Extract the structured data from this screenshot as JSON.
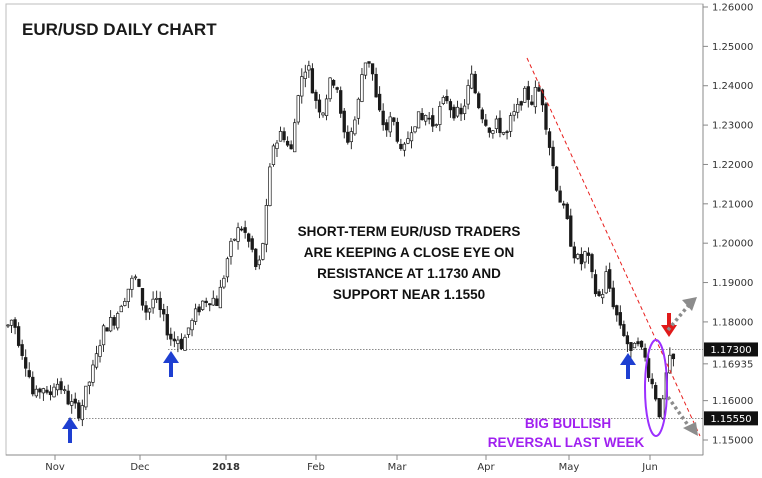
{
  "chart_data": {
    "type": "candlestick",
    "title": "EUR/USD DAILY CHART",
    "instrument": "EUR/USD",
    "timeframe": "Daily",
    "ylim": [
      1.1455,
      1.2615
    ],
    "y_ticks": [
      "1.26000",
      "1.25000",
      "1.24000",
      "1.23000",
      "1.22000",
      "1.21000",
      "1.20000",
      "1.19000",
      "1.18000",
      "1.16935",
      "1.16000",
      "1.15000"
    ],
    "x_ticks": [
      "Nov",
      "Dec",
      "2018",
      "Feb",
      "Mar",
      "Apr",
      "May",
      "Jun"
    ],
    "price_labels": [
      {
        "text": "1.17300",
        "value": 1.173
      },
      {
        "text": "1.15550",
        "value": 1.1555
      }
    ],
    "levels": [
      {
        "name": "resistance",
        "value": 1.173,
        "style": "dotted"
      },
      {
        "name": "support",
        "value": 1.1555,
        "style": "dotted"
      }
    ],
    "annotations": [
      "SHORT-TERM EUR/USD TRADERS",
      "ARE KEEPING A CLOSE EYE ON",
      "RESISTANCE AT 1.1730 AND",
      "SUPPORT NEAR 1.1550"
    ],
    "pattern_label": [
      "BIG BULLISH",
      "REVERSAL LAST WEEK"
    ],
    "price_path": [
      [
        0,
        1.179
      ],
      [
        5,
        1.181
      ],
      [
        10,
        1.176
      ],
      [
        15,
        1.172
      ],
      [
        20,
        1.168
      ],
      [
        26,
        1.16
      ],
      [
        30,
        1.162
      ],
      [
        35,
        1.164
      ],
      [
        40,
        1.16
      ],
      [
        47,
        1.165
      ],
      [
        52,
        1.164
      ],
      [
        58,
        1.161
      ],
      [
        63,
        1.159
      ],
      [
        68,
        1.158
      ],
      [
        72,
        1.157
      ],
      [
        78,
        1.162
      ],
      [
        83,
        1.166
      ],
      [
        88,
        1.17
      ],
      [
        93,
        1.176
      ],
      [
        98,
        1.179
      ],
      [
        103,
        1.18
      ],
      [
        108,
        1.181
      ],
      [
        113,
        1.185
      ],
      [
        118,
        1.187
      ],
      [
        123,
        1.19
      ],
      [
        128,
        1.191
      ],
      [
        133,
        1.186
      ],
      [
        140,
        1.182
      ],
      [
        145,
        1.186
      ],
      [
        150,
        1.184
      ],
      [
        155,
        1.181
      ],
      [
        160,
        1.178
      ],
      [
        165,
        1.175
      ],
      [
        170,
        1.176
      ],
      [
        175,
        1.174
      ],
      [
        180,
        1.178
      ],
      [
        185,
        1.18
      ],
      [
        190,
        1.183
      ],
      [
        195,
        1.185
      ],
      [
        200,
        1.186
      ],
      [
        205,
        1.186
      ],
      [
        210,
        1.185
      ],
      [
        215,
        1.19
      ],
      [
        220,
        1.196
      ],
      [
        225,
        1.2
      ],
      [
        230,
        1.203
      ],
      [
        235,
        1.204
      ],
      [
        240,
        1.201
      ],
      [
        245,
        1.198
      ],
      [
        250,
        1.192
      ],
      [
        255,
        1.199
      ],
      [
        260,
        1.21
      ],
      [
        265,
        1.225
      ],
      [
        270,
        1.226
      ],
      [
        275,
        1.229
      ],
      [
        280,
        1.225
      ],
      [
        285,
        1.223
      ],
      [
        290,
        1.238
      ],
      [
        295,
        1.242
      ],
      [
        300,
        1.247
      ],
      [
        305,
        1.239
      ],
      [
        310,
        1.236
      ],
      [
        315,
        1.233
      ],
      [
        320,
        1.238
      ],
      [
        325,
        1.242
      ],
      [
        330,
        1.24
      ],
      [
        335,
        1.229
      ],
      [
        340,
        1.226
      ],
      [
        345,
        1.229
      ],
      [
        350,
        1.233
      ],
      [
        355,
        1.243
      ],
      [
        360,
        1.248
      ],
      [
        365,
        1.244
      ],
      [
        370,
        1.235
      ],
      [
        375,
        1.231
      ],
      [
        380,
        1.229
      ],
      [
        385,
        1.232
      ],
      [
        390,
        1.228
      ],
      [
        395,
        1.221
      ],
      [
        400,
        1.226
      ],
      [
        405,
        1.23
      ],
      [
        410,
        1.232
      ],
      [
        415,
        1.231
      ],
      [
        420,
        1.233
      ],
      [
        425,
        1.23
      ],
      [
        430,
        1.232
      ],
      [
        435,
        1.235
      ],
      [
        440,
        1.237
      ],
      [
        445,
        1.234
      ],
      [
        450,
        1.233
      ],
      [
        455,
        1.232
      ],
      [
        460,
        1.238
      ],
      [
        465,
        1.242
      ],
      [
        470,
        1.237
      ],
      [
        475,
        1.233
      ],
      [
        480,
        1.231
      ],
      [
        485,
        1.228
      ],
      [
        490,
        1.23
      ],
      [
        495,
        1.229
      ],
      [
        500,
        1.227
      ],
      [
        505,
        1.232
      ],
      [
        510,
        1.233
      ],
      [
        515,
        1.237
      ],
      [
        520,
        1.238
      ],
      [
        525,
        1.236
      ],
      [
        530,
        1.239
      ],
      [
        535,
        1.238
      ],
      [
        540,
        1.23
      ],
      [
        545,
        1.222
      ],
      [
        550,
        1.215
      ],
      [
        555,
        1.21
      ],
      [
        560,
        1.206
      ],
      [
        565,
        1.2
      ],
      [
        570,
        1.196
      ],
      [
        575,
        1.195
      ],
      [
        580,
        1.198
      ],
      [
        585,
        1.192
      ],
      [
        590,
        1.187
      ],
      [
        595,
        1.186
      ],
      [
        600,
        1.192
      ],
      [
        605,
        1.187
      ],
      [
        610,
        1.182
      ],
      [
        615,
        1.179
      ],
      [
        620,
        1.176
      ],
      [
        625,
        1.171
      ],
      [
        630,
        1.178
      ],
      [
        635,
        1.173
      ],
      [
        640,
        1.17
      ],
      [
        645,
        1.165
      ],
      [
        650,
        1.161
      ],
      [
        655,
        1.155
      ],
      [
        660,
        1.166
      ],
      [
        665,
        1.171
      ],
      [
        670,
        1.169
      ]
    ]
  },
  "y_labels": [
    "1.26000",
    "1.25000",
    "1.24000",
    "1.23000",
    "1.22000",
    "1.21000",
    "1.20000",
    "1.19000",
    "1.18000",
    "1.16935",
    "1.16000",
    "1.15000"
  ],
  "x_labels": [
    "Nov",
    "Dec",
    "2018",
    "Feb",
    "Mar",
    "Apr",
    "May",
    "Jun"
  ],
  "title": "EUR/USD DAILY CHART",
  "annotation_lines": [
    "SHORT-TERM EUR/USD TRADERS",
    "ARE KEEPING A CLOSE EYE ON",
    "RESISTANCE AT 1.1730 AND",
    "SUPPORT NEAR 1.1550"
  ],
  "purple_lines": [
    "BIG BULLISH",
    "REVERSAL LAST WEEK"
  ],
  "price_tags": [
    "1.17300",
    "1.15550"
  ],
  "colors": {
    "up_candle": "#ffffff",
    "down_candle": "#1a1a1a",
    "wick": "#1a1a1a",
    "trendline": "#e8201e",
    "blue_arrow": "#1e3fd1",
    "red_arrow": "#e01a1a",
    "gray_arrow": "#8c8c8c",
    "ellipse": "#9b30ff",
    "tag_bg": "#111111"
  }
}
